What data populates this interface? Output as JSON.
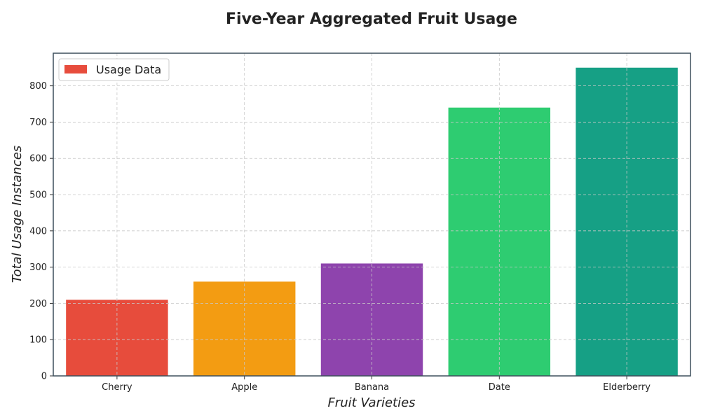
{
  "chart_data": {
    "type": "bar",
    "title": "Five-Year Aggregated Fruit Usage",
    "xlabel": "Fruit Varieties",
    "ylabel": "Total Usage Instances",
    "categories": [
      "Cherry",
      "Apple",
      "Banana",
      "Date",
      "Elderberry"
    ],
    "values": [
      210,
      260,
      310,
      740,
      850
    ],
    "colors": [
      "#e74c3c",
      "#f39c12",
      "#8e44ad",
      "#2ecc71",
      "#16a085"
    ],
    "ylim": [
      0,
      890
    ],
    "yticks": [
      0,
      100,
      200,
      300,
      400,
      500,
      600,
      700,
      800
    ],
    "grid": true,
    "legend": {
      "label": "Usage Data",
      "placement": "top-left",
      "color": "#e74c3c"
    }
  }
}
